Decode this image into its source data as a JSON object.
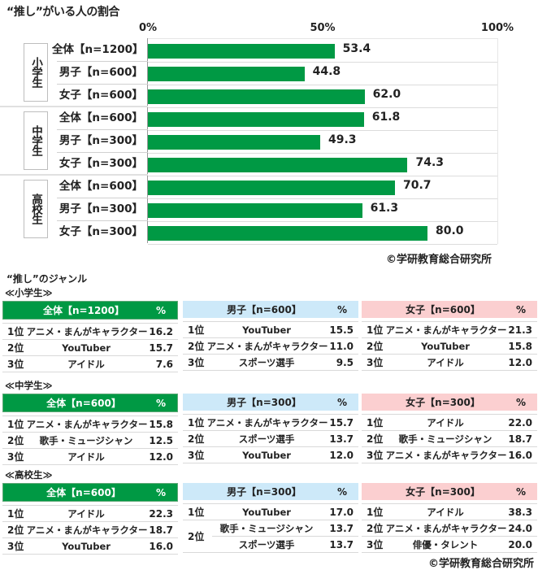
{
  "chart_data": {
    "type": "bar",
    "orientation": "horizontal",
    "title": "“推し”がいる人の割合",
    "xlabel": "",
    "ylabel": "",
    "xlim": [
      0,
      100
    ],
    "ticks": [
      "0%",
      "50%",
      "100%"
    ],
    "grid": true,
    "legend": null,
    "groups": [
      {
        "name": "小学生",
        "categories": [
          "全体【n=1200】",
          "男子【n=600】",
          "女子【n=600】"
        ],
        "values": [
          53.4,
          44.8,
          62.0
        ]
      },
      {
        "name": "中学生",
        "categories": [
          "全体【n=600】",
          "男子【n=300】",
          "女子【n=300】"
        ],
        "values": [
          61.8,
          49.3,
          74.3
        ]
      },
      {
        "name": "高校生",
        "categories": [
          "全体【n=600】",
          "男子【n=300】",
          "女子【n=300】"
        ],
        "values": [
          70.7,
          61.3,
          80.0
        ]
      }
    ],
    "color": "#009944",
    "credit": "©学研教育総合研究所"
  },
  "chart": {
    "title": "“推し”がいる人の割合",
    "ticks": [
      "0%",
      "50%",
      "100%"
    ],
    "groups": [
      {
        "label": "小学生",
        "rows": [
          {
            "label": "全体【n=1200】",
            "value": "53.4",
            "pct": 53.4
          },
          {
            "label": "男子【n=600】",
            "value": "44.8",
            "pct": 44.8
          },
          {
            "label": "女子【n=600】",
            "value": "62.0",
            "pct": 62.0
          }
        ]
      },
      {
        "label": "中学生",
        "rows": [
          {
            "label": "全体【n=600】",
            "value": "61.8",
            "pct": 61.8
          },
          {
            "label": "男子【n=300】",
            "value": "49.3",
            "pct": 49.3
          },
          {
            "label": "女子【n=300】",
            "value": "74.3",
            "pct": 74.3
          }
        ]
      },
      {
        "label": "高校生",
        "rows": [
          {
            "label": "全体【n=600】",
            "value": "70.7",
            "pct": 70.7
          },
          {
            "label": "男子【n=300】",
            "value": "61.3",
            "pct": 61.3
          },
          {
            "label": "女子【n=300】",
            "value": "80.0",
            "pct": 80.0
          }
        ]
      }
    ],
    "credit": "©学研教育総合研究所"
  },
  "genres": {
    "title": "“推し”のジャンル",
    "pct_header": "%",
    "levels": [
      {
        "label": "≪小学生≫",
        "tables": [
          {
            "header": "全体【n=1200】",
            "rows": [
              {
                "rank": "1位",
                "genre": "アニメ・まんがキャラクター",
                "pct": "16.2"
              },
              {
                "rank": "2位",
                "genre": "YouTuber",
                "pct": "15.7"
              },
              {
                "rank": "3位",
                "genre": "アイドル",
                "pct": "7.6"
              }
            ]
          },
          {
            "header": "男子【n=600】",
            "rows": [
              {
                "rank": "1位",
                "genre": "YouTuber",
                "pct": "15.5"
              },
              {
                "rank": "2位",
                "genre": "アニメ・まんがキャラクター",
                "pct": "11.0"
              },
              {
                "rank": "3位",
                "genre": "スポーツ選手",
                "pct": "9.5"
              }
            ]
          },
          {
            "header": "女子【n=600】",
            "rows": [
              {
                "rank": "1位",
                "genre": "アニメ・まんがキャラクター",
                "pct": "21.3"
              },
              {
                "rank": "2位",
                "genre": "YouTuber",
                "pct": "15.8"
              },
              {
                "rank": "3位",
                "genre": "アイドル",
                "pct": "12.0"
              }
            ]
          }
        ]
      },
      {
        "label": "≪中学生≫",
        "tables": [
          {
            "header": "全体【n=600】",
            "rows": [
              {
                "rank": "1位",
                "genre": "アニメ・まんがキャラクター",
                "pct": "15.8"
              },
              {
                "rank": "2位",
                "genre": "歌手・ミュージシャン",
                "pct": "12.5"
              },
              {
                "rank": "3位",
                "genre": "アイドル",
                "pct": "12.0"
              }
            ]
          },
          {
            "header": "男子【n=300】",
            "rows": [
              {
                "rank": "1位",
                "genre": "アニメ・まんがキャラクター",
                "pct": "15.7"
              },
              {
                "rank": "2位",
                "genre": "スポーツ選手",
                "pct": "13.7"
              },
              {
                "rank": "3位",
                "genre": "YouTuber",
                "pct": "12.0"
              }
            ]
          },
          {
            "header": "女子【n=300】",
            "rows": [
              {
                "rank": "1位",
                "genre": "アイドル",
                "pct": "22.0"
              },
              {
                "rank": "2位",
                "genre": "歌手・ミュージシャン",
                "pct": "18.7"
              },
              {
                "rank": "3位",
                "genre": "アニメ・まんがキャラクター",
                "pct": "16.0"
              }
            ]
          }
        ]
      },
      {
        "label": "≪高校生≫",
        "tables": [
          {
            "header": "全体【n=600】",
            "rows": [
              {
                "rank": "1位",
                "genre": "アイドル",
                "pct": "22.3"
              },
              {
                "rank": "2位",
                "genre": "アニメ・まんがキャラクター",
                "pct": "18.7"
              },
              {
                "rank": "3位",
                "genre": "YouTuber",
                "pct": "16.0"
              }
            ]
          },
          {
            "header": "男子【n=300】",
            "rows": [
              {
                "rank": "1位",
                "genre": "YouTuber",
                "pct": "17.0"
              },
              {
                "rank": "2位",
                "genre": "歌手・ミュージシャン",
                "pct": "13.7"
              },
              {
                "rank": "2位",
                "genre": "スポーツ選手",
                "pct": "13.7"
              }
            ]
          },
          {
            "header": "女子【n=300】",
            "rows": [
              {
                "rank": "1位",
                "genre": "アイドル",
                "pct": "38.3"
              },
              {
                "rank": "2位",
                "genre": "アニメ・まんがキャラクター",
                "pct": "24.0"
              },
              {
                "rank": "3位",
                "genre": "俳優・タレント",
                "pct": "20.0"
              }
            ]
          }
        ]
      }
    ],
    "credit": "©学研教育総合研究所"
  }
}
